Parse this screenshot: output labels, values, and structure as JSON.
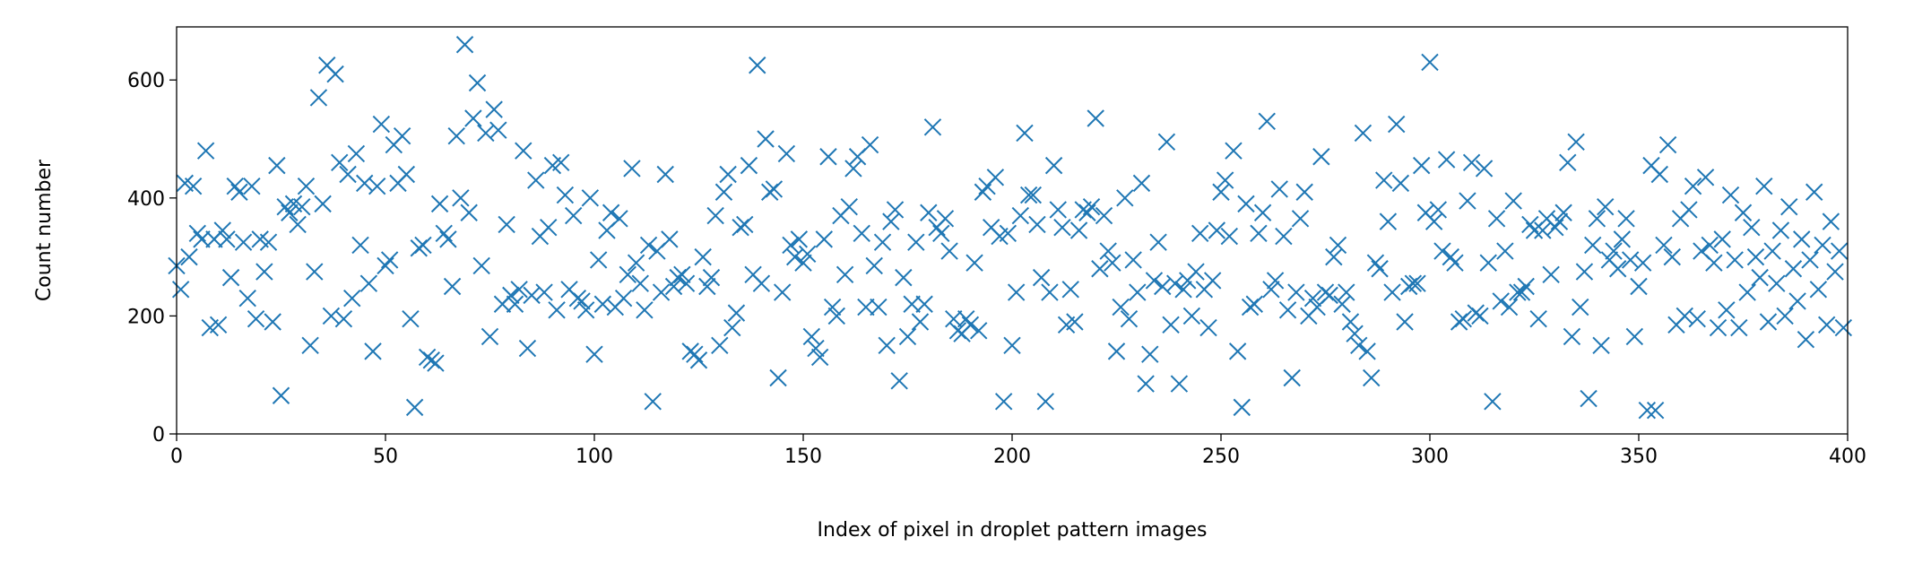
{
  "chart_data": {
    "type": "scatter",
    "xlabel": "Index of pixel in droplet pattern images",
    "ylabel": "Count number",
    "color": "#1f77b4",
    "marker": "x",
    "xlim": [
      0,
      400
    ],
    "xticks": [
      0,
      50,
      100,
      150,
      200,
      250,
      300,
      350,
      400
    ],
    "ylim": [
      0,
      690
    ],
    "yticks": [
      0,
      200,
      400,
      600
    ],
    "x": [
      0,
      1,
      2,
      3,
      4,
      5,
      6,
      7,
      8,
      9,
      10,
      11,
      12,
      13,
      14,
      15,
      16,
      17,
      18,
      19,
      20,
      21,
      22,
      23,
      24,
      25,
      26,
      27,
      28,
      29,
      30,
      31,
      32,
      33,
      34,
      35,
      36,
      37,
      38,
      39,
      40,
      41,
      42,
      43,
      44,
      45,
      46,
      47,
      48,
      49,
      50,
      51,
      52,
      53,
      54,
      55,
      56,
      57,
      58,
      59,
      60,
      61,
      62,
      63,
      64,
      65,
      66,
      67,
      68,
      69,
      70,
      71,
      72,
      73,
      74,
      75,
      76,
      77,
      78,
      79,
      80,
      81,
      82,
      83,
      84,
      85,
      86,
      87,
      88,
      89,
      90,
      91,
      92,
      93,
      94,
      95,
      96,
      97,
      98,
      99,
      100,
      101,
      102,
      103,
      104,
      105,
      106,
      107,
      108,
      109,
      110,
      111,
      112,
      113,
      114,
      115,
      116,
      117,
      118,
      119,
      120,
      121,
      122,
      123,
      124,
      125,
      126,
      127,
      128,
      129,
      130,
      131,
      132,
      133,
      134,
      135,
      136,
      137,
      138,
      139,
      140,
      141,
      142,
      143,
      144,
      145,
      146,
      147,
      148,
      149,
      150,
      151,
      152,
      153,
      154,
      155,
      156,
      157,
      158,
      159,
      160,
      161,
      162,
      163,
      164,
      165,
      166,
      167,
      168,
      169,
      170,
      171,
      172,
      173,
      174,
      175,
      176,
      177,
      178,
      179,
      180,
      181,
      182,
      183,
      184,
      185,
      186,
      187,
      188,
      189,
      190,
      191,
      192,
      193,
      194,
      195,
      196,
      197,
      198,
      199,
      200,
      201,
      202,
      203,
      204,
      205,
      206,
      207,
      208,
      209,
      210,
      211,
      212,
      213,
      214,
      215,
      216,
      217,
      218,
      219,
      220,
      221,
      222,
      223,
      224,
      225,
      226,
      227,
      228,
      229,
      230,
      231,
      232,
      233,
      234,
      235,
      236,
      237,
      238,
      239,
      240,
      241,
      242,
      243,
      244,
      245,
      246,
      247,
      248,
      249,
      250,
      251,
      252,
      253,
      254,
      255,
      256,
      257,
      258,
      259,
      260,
      261,
      262,
      263,
      264,
      265,
      266,
      267,
      268,
      269,
      270,
      271,
      272,
      273,
      274,
      275,
      276,
      277,
      278,
      279,
      280,
      281,
      282,
      283,
      284,
      285,
      286,
      287,
      288,
      289,
      290,
      291,
      292,
      293,
      294,
      295,
      296,
      297,
      298,
      299,
      300,
      301,
      302,
      303,
      304,
      305,
      306,
      307,
      308,
      309,
      310,
      311,
      312,
      313,
      314,
      315,
      316,
      317,
      318,
      319,
      320,
      321,
      322,
      323,
      324,
      325,
      326,
      327,
      328,
      329,
      330,
      331,
      332,
      333,
      334,
      335,
      336,
      337,
      338,
      339,
      340,
      341,
      342,
      343,
      344,
      345,
      346,
      347,
      348,
      349,
      350,
      351,
      352,
      353,
      354,
      355,
      356,
      357,
      358,
      359,
      360,
      361,
      362,
      363,
      364,
      365,
      366,
      367,
      368,
      369,
      370,
      371,
      372,
      373,
      374,
      375,
      376,
      377,
      378,
      379,
      380,
      381,
      382,
      383,
      384,
      385,
      386,
      387,
      388,
      389,
      390,
      391,
      392,
      393,
      394,
      395,
      396,
      397,
      398,
      399
    ],
    "values": [
      285,
      245,
      425,
      300,
      420,
      340,
      330,
      480,
      180,
      330,
      185,
      345,
      330,
      265,
      420,
      410,
      325,
      230,
      420,
      195,
      330,
      275,
      325,
      190,
      455,
      65,
      385,
      375,
      390,
      355,
      385,
      420,
      150,
      275,
      570,
      390,
      625,
      200,
      610,
      460,
      195,
      440,
      230,
      475,
      320,
      425,
      255,
      140,
      420,
      525,
      285,
      295,
      490,
      425,
      505,
      440,
      195,
      45,
      315,
      320,
      130,
      125,
      120,
      390,
      340,
      330,
      250,
      505,
      400,
      660,
      375,
      535,
      595,
      285,
      510,
      165,
      550,
      515,
      220,
      355,
      235,
      220,
      245,
      480,
      145,
      235,
      430,
      335,
      240,
      350,
      455,
      210,
      460,
      405,
      245,
      370,
      230,
      225,
      210,
      400,
      135,
      295,
      220,
      345,
      375,
      215,
      365,
      230,
      270,
      450,
      290,
      255,
      210,
      320,
      55,
      310,
      240,
      440,
      330,
      250,
      265,
      270,
      255,
      140,
      135,
      125,
      300,
      250,
      265,
      370,
      150,
      410,
      440,
      180,
      205,
      350,
      355,
      455,
      270,
      625,
      255,
      500,
      410,
      415,
      95,
      240,
      475,
      320,
      300,
      330,
      290,
      305,
      165,
      145,
      130,
      330,
      470,
      215,
      200,
      370,
      270,
      385,
      450,
      470,
      340,
      215,
      490,
      285,
      215,
      325,
      150,
      360,
      380,
      90,
      265,
      165,
      220,
      325,
      190,
      220,
      375,
      520,
      350,
      340,
      365,
      310,
      195,
      175,
      170,
      195,
      185,
      290,
      175,
      410,
      420,
      350,
      435,
      335,
      55,
      340,
      150,
      240,
      370,
      510,
      405,
      405,
      355,
      265,
      55,
      240,
      455,
      380,
      350,
      185,
      245,
      190,
      345,
      380,
      375,
      385,
      535,
      280,
      370,
      310,
      290,
      140,
      215,
      400,
      195,
      295,
      240,
      425,
      85,
      135,
      260,
      325,
      250,
      495,
      185,
      255,
      85,
      245,
      260,
      200,
      275,
      340,
      245,
      180,
      260,
      345,
      410,
      430,
      335,
      480,
      140,
      45,
      390,
      215,
      220,
      340,
      375,
      530,
      245,
      260,
      415,
      335,
      210,
      95,
      240,
      365,
      410,
      200,
      230,
      215,
      470,
      240,
      235,
      300,
      320,
      220,
      240,
      190,
      170,
      150,
      510,
      140,
      95,
      290,
      280,
      430,
      360,
      240,
      525,
      425,
      190,
      250,
      255,
      255,
      455,
      375,
      630,
      360,
      380,
      310,
      465,
      300,
      290,
      190,
      195,
      395,
      460,
      205,
      200,
      450,
      290,
      55,
      365,
      225,
      310,
      215,
      395,
      240,
      240,
      250,
      355,
      345,
      195,
      345,
      365,
      270,
      350,
      360,
      375,
      460,
      165,
      495,
      215,
      275,
      60,
      320,
      365,
      150,
      385,
      295,
      310,
      280,
      330,
      365,
      295,
      165,
      250,
      290,
      40,
      455,
      40,
      440,
      320,
      490,
      300,
      185,
      365,
      200,
      380,
      420,
      195,
      310,
      435,
      320,
      290,
      180,
      330,
      210,
      405,
      295,
      180,
      375,
      240,
      350,
      300,
      265,
      420,
      190,
      310,
      255,
      345,
      200,
      385,
      280,
      225,
      330,
      160,
      295,
      410,
      245,
      320,
      185,
      360,
      275,
      310,
      180
    ]
  }
}
